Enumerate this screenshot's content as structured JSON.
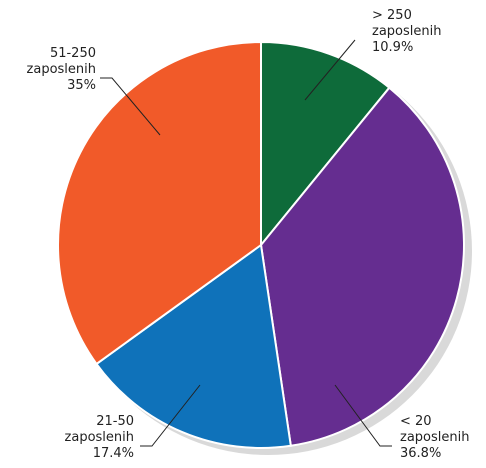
{
  "chart_data": {
    "type": "pie",
    "categories": [
      "> 250 zaposlenih",
      "< 20 zaposlenih",
      "21-50 zaposlenih",
      "51-250 zaposlenih"
    ],
    "values": [
      10.9,
      36.8,
      17.4,
      35
    ],
    "value_labels": [
      "10.9%",
      "36.8%",
      "17.4%",
      "35%"
    ],
    "colors": [
      "#0e6b3a",
      "#652d90",
      "#0f72ba",
      "#f15a29"
    ]
  }
}
